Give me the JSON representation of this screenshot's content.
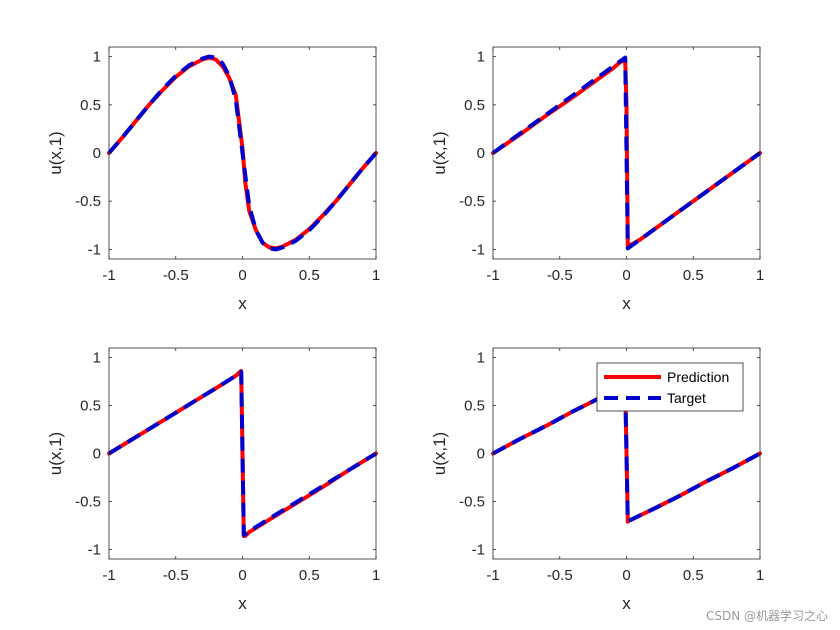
{
  "colors": {
    "prediction": "#ff0000",
    "target": "#0000cc",
    "axes": "#262626",
    "background": "#ffffff"
  },
  "watermark": "CSDN @机器学习之心",
  "legend": {
    "placement": "upper-right of bottom-right panel",
    "entries": [
      "Prediction",
      "Target"
    ]
  },
  "chart_data": [
    {
      "type": "line",
      "xlabel": "x",
      "ylabel": "u(x,1)",
      "xlim": [
        -1,
        1
      ],
      "ylim": [
        -1.1,
        1.1
      ],
      "xticks": [
        "-1",
        "-0.5",
        "0",
        "0.5",
        "1"
      ],
      "yticks": [
        "-1",
        "-0.5",
        "0",
        "0.5",
        "1"
      ],
      "grid": false,
      "legend": false,
      "series": [
        {
          "name": "Prediction",
          "style": "solid",
          "x": [
            -1,
            -0.9,
            -0.8,
            -0.7,
            -0.6,
            -0.5,
            -0.4,
            -0.3,
            -0.25,
            -0.2,
            -0.15,
            -0.1,
            -0.05,
            0,
            0.02,
            0.05,
            0.1,
            0.15,
            0.2,
            0.25,
            0.3,
            0.4,
            0.5,
            0.6,
            0.7,
            0.8,
            0.9,
            1
          ],
          "y": [
            0,
            0.16,
            0.33,
            0.5,
            0.65,
            0.79,
            0.9,
            0.97,
            0.99,
            0.97,
            0.9,
            0.78,
            0.6,
            0.05,
            -0.3,
            -0.6,
            -0.8,
            -0.93,
            -0.98,
            -0.99,
            -0.97,
            -0.9,
            -0.79,
            -0.65,
            -0.5,
            -0.33,
            -0.16,
            0
          ]
        },
        {
          "name": "Target",
          "style": "dashed",
          "x": [
            -1,
            -0.9,
            -0.8,
            -0.7,
            -0.6,
            -0.5,
            -0.4,
            -0.3,
            -0.25,
            -0.2,
            -0.15,
            -0.1,
            -0.05,
            0,
            0.05,
            0.1,
            0.15,
            0.2,
            0.25,
            0.3,
            0.4,
            0.5,
            0.6,
            0.7,
            0.8,
            0.9,
            1
          ],
          "y": [
            0,
            0.16,
            0.33,
            0.5,
            0.66,
            0.8,
            0.91,
            0.98,
            1.0,
            0.99,
            0.93,
            0.8,
            0.55,
            0,
            -0.55,
            -0.8,
            -0.93,
            -0.99,
            -1.0,
            -0.98,
            -0.91,
            -0.8,
            -0.66,
            -0.5,
            -0.33,
            -0.16,
            0
          ]
        }
      ]
    },
    {
      "type": "line",
      "xlabel": "x",
      "ylabel": "u(x,1)",
      "xlim": [
        -1,
        1
      ],
      "ylim": [
        -1.1,
        1.1
      ],
      "xticks": [
        "-1",
        "-0.5",
        "0",
        "0.5",
        "1"
      ],
      "yticks": [
        "-1",
        "-0.5",
        "0",
        "0.5",
        "1"
      ],
      "grid": false,
      "legend": false,
      "series": [
        {
          "name": "Prediction",
          "style": "solid",
          "x": [
            -1,
            -0.8,
            -0.6,
            -0.4,
            -0.2,
            -0.1,
            -0.05,
            -0.02,
            -0.01,
            0,
            0.01,
            0.02,
            0.05,
            0.1,
            0.2,
            0.4,
            0.6,
            0.8,
            1
          ],
          "y": [
            0,
            0.19,
            0.39,
            0.58,
            0.78,
            0.88,
            0.94,
            0.96,
            0.96,
            0.5,
            -0.96,
            -0.96,
            -0.94,
            -0.9,
            -0.8,
            -0.6,
            -0.4,
            -0.2,
            0
          ]
        },
        {
          "name": "Target",
          "style": "dashed",
          "x": [
            -1,
            -0.8,
            -0.6,
            -0.4,
            -0.2,
            -0.1,
            -0.05,
            -0.02,
            -0.01,
            0,
            0.01,
            0.02,
            0.05,
            0.1,
            0.2,
            0.4,
            0.6,
            0.8,
            1
          ],
          "y": [
            0,
            0.2,
            0.4,
            0.6,
            0.8,
            0.9,
            0.95,
            0.98,
            0.99,
            0,
            -0.99,
            -0.98,
            -0.95,
            -0.9,
            -0.8,
            -0.6,
            -0.4,
            -0.2,
            0
          ]
        }
      ]
    },
    {
      "type": "line",
      "xlabel": "x",
      "ylabel": "u(x,1)",
      "xlim": [
        -1,
        1
      ],
      "ylim": [
        -1.1,
        1.1
      ],
      "xticks": [
        "-1",
        "-0.5",
        "0",
        "0.5",
        "1"
      ],
      "yticks": [
        "-1",
        "-0.5",
        "0",
        "0.5",
        "1"
      ],
      "grid": false,
      "legend": false,
      "series": [
        {
          "name": "Prediction",
          "style": "solid",
          "x": [
            -1,
            -0.8,
            -0.6,
            -0.4,
            -0.2,
            -0.05,
            -0.02,
            -0.01,
            0,
            0.01,
            0.02,
            0.05,
            0.2,
            0.4,
            0.6,
            0.8,
            1
          ],
          "y": [
            0,
            0.17,
            0.34,
            0.51,
            0.68,
            0.81,
            0.85,
            0.86,
            0,
            -0.86,
            -0.86,
            -0.82,
            -0.69,
            -0.52,
            -0.35,
            -0.17,
            0
          ]
        },
        {
          "name": "Target",
          "style": "dashed",
          "x": [
            -1,
            -0.8,
            -0.6,
            -0.4,
            -0.2,
            -0.05,
            -0.02,
            -0.01,
            0,
            0.01,
            0.02,
            0.05,
            0.2,
            0.4,
            0.6,
            0.8,
            1
          ],
          "y": [
            0,
            0.17,
            0.34,
            0.51,
            0.68,
            0.81,
            0.84,
            0.85,
            0,
            -0.85,
            -0.84,
            -0.81,
            -0.68,
            -0.51,
            -0.34,
            -0.17,
            0
          ]
        }
      ]
    },
    {
      "type": "line",
      "xlabel": "x",
      "ylabel": "u(x,1)",
      "xlim": [
        -1,
        1
      ],
      "ylim": [
        -1.1,
        1.1
      ],
      "xticks": [
        "-1",
        "-0.5",
        "0",
        "0.5",
        "1"
      ],
      "yticks": [
        "-1",
        "-0.5",
        "0",
        "0.5",
        "1"
      ],
      "grid": false,
      "legend": true,
      "series": [
        {
          "name": "Prediction",
          "style": "solid",
          "x": [
            -1,
            -0.8,
            -0.6,
            -0.4,
            -0.2,
            -0.05,
            -0.02,
            -0.01,
            0,
            0.01,
            0.02,
            0.05,
            0.2,
            0.4,
            0.6,
            0.8,
            1
          ],
          "y": [
            0,
            0.15,
            0.29,
            0.44,
            0.58,
            0.68,
            0.7,
            0.71,
            0,
            -0.71,
            -0.7,
            -0.68,
            -0.58,
            -0.44,
            -0.29,
            -0.15,
            0
          ]
        },
        {
          "name": "Target",
          "style": "dashed",
          "x": [
            -1,
            -0.8,
            -0.6,
            -0.4,
            -0.2,
            -0.05,
            -0.02,
            -0.01,
            0,
            0.01,
            0.02,
            0.05,
            0.2,
            0.4,
            0.6,
            0.8,
            1
          ],
          "y": [
            0,
            0.15,
            0.29,
            0.44,
            0.58,
            0.68,
            0.7,
            0.71,
            0,
            -0.71,
            -0.7,
            -0.68,
            -0.58,
            -0.44,
            -0.29,
            -0.15,
            0
          ]
        }
      ]
    }
  ]
}
